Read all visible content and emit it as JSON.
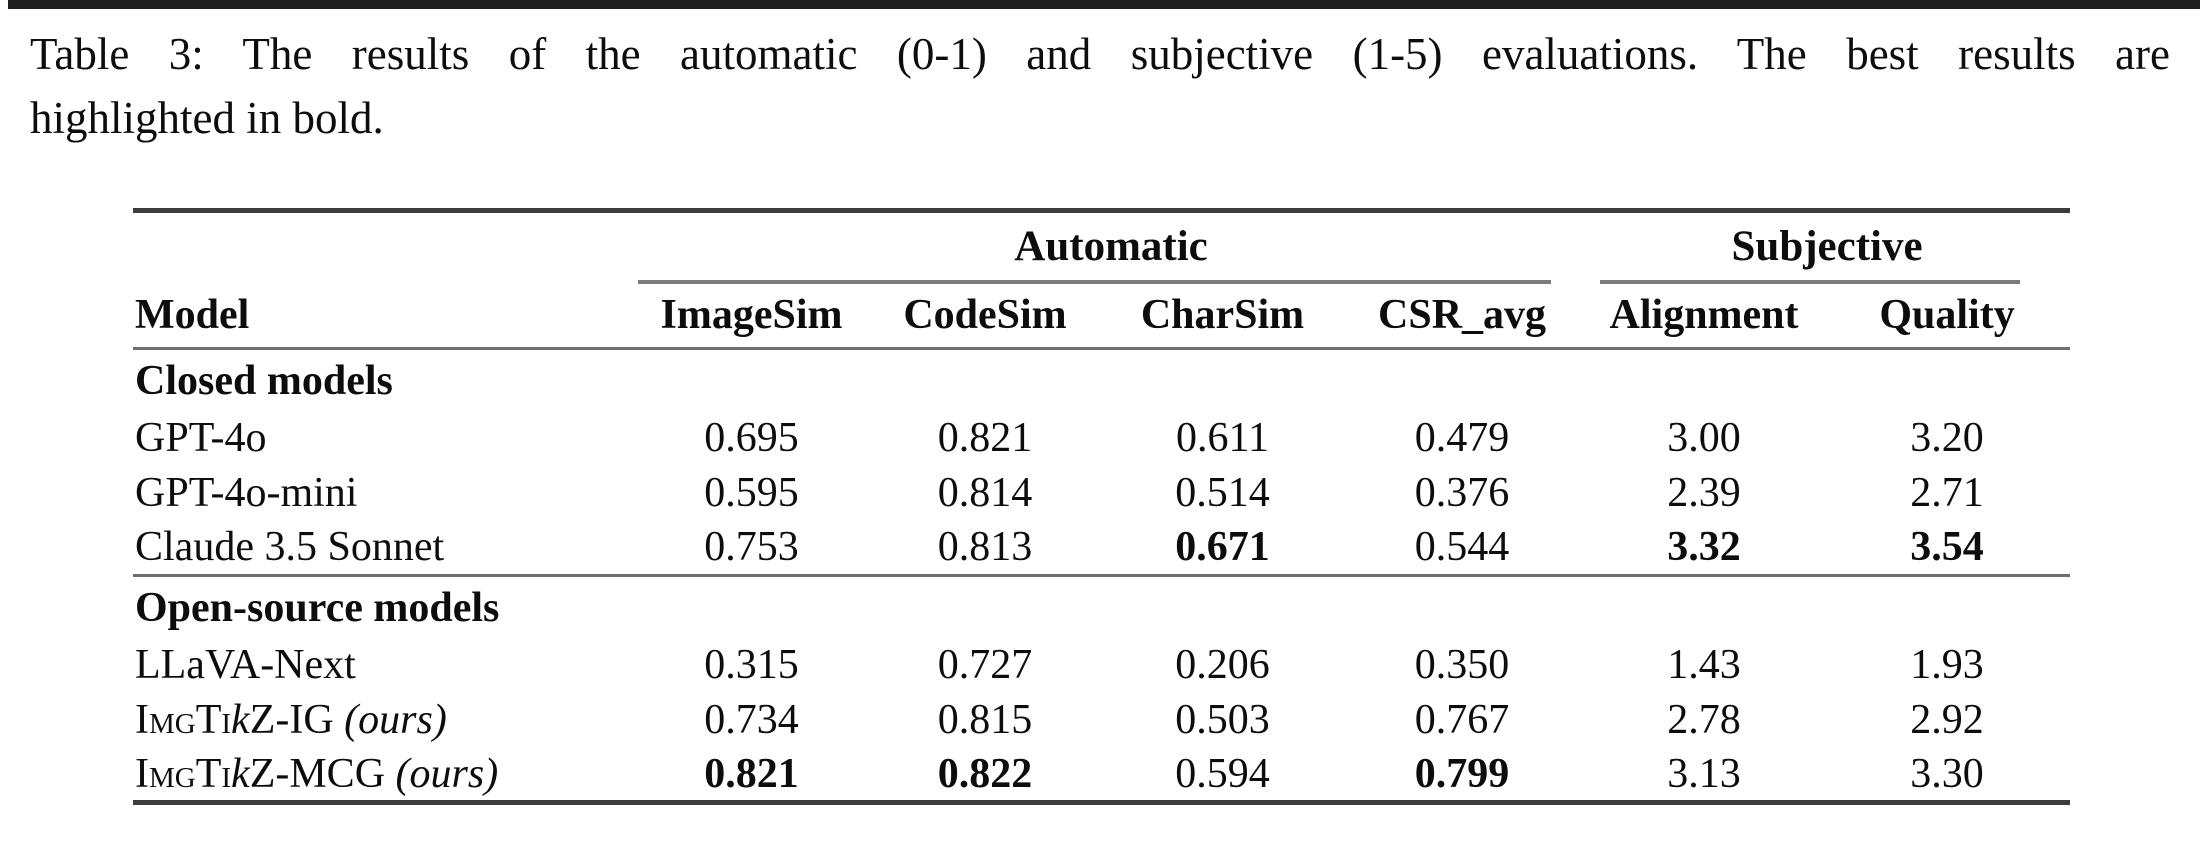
{
  "caption": {
    "line1": "Table 3: The results of the automatic (0-1) and subjective (1-5) evaluations. The best results are",
    "line2": "highlighted in bold."
  },
  "table": {
    "column_groups": [
      {
        "label": "Automatic",
        "span": 4
      },
      {
        "label": "Subjective",
        "span": 2
      }
    ],
    "columns": [
      "Model",
      "ImageSim",
      "CodeSim",
      "CharSim",
      "CSR_avg",
      "Alignment",
      "Quality"
    ],
    "sections": [
      {
        "header": "Closed models",
        "rows": [
          {
            "model": [
              {
                "t": "GPT-4o"
              }
            ],
            "values": [
              {
                "v": "0.695"
              },
              {
                "v": "0.821"
              },
              {
                "v": "0.611"
              },
              {
                "v": "0.479"
              },
              {
                "v": "3.00"
              },
              {
                "v": "3.20"
              }
            ]
          },
          {
            "model": [
              {
                "t": "GPT-4o-mini"
              }
            ],
            "values": [
              {
                "v": "0.595"
              },
              {
                "v": "0.814"
              },
              {
                "v": "0.514"
              },
              {
                "v": "0.376"
              },
              {
                "v": "2.39"
              },
              {
                "v": "2.71"
              }
            ]
          },
          {
            "model": [
              {
                "t": "Claude 3.5 Sonnet"
              }
            ],
            "values": [
              {
                "v": "0.753"
              },
              {
                "v": "0.813"
              },
              {
                "v": "0.671",
                "bold": true
              },
              {
                "v": "0.544"
              },
              {
                "v": "3.32",
                "bold": true
              },
              {
                "v": "3.54",
                "bold": true
              }
            ]
          }
        ]
      },
      {
        "header": "Open-source models",
        "rows": [
          {
            "model": [
              {
                "t": "LLaVA-Next"
              }
            ],
            "values": [
              {
                "v": "0.315"
              },
              {
                "v": "0.727"
              },
              {
                "v": "0.206"
              },
              {
                "v": "0.350"
              },
              {
                "v": "1.43"
              },
              {
                "v": "1.93"
              }
            ]
          },
          {
            "model": [
              {
                "t": "ImgTi",
                "sc": true
              },
              {
                "t": "k",
                "it": true
              },
              {
                "t": "Z-IG"
              },
              {
                "t": "  (ours)",
                "it": true
              }
            ],
            "values": [
              {
                "v": "0.734"
              },
              {
                "v": "0.815"
              },
              {
                "v": "0.503"
              },
              {
                "v": "0.767"
              },
              {
                "v": "2.78"
              },
              {
                "v": "2.92"
              }
            ]
          },
          {
            "model": [
              {
                "t": "ImgTi",
                "sc": true
              },
              {
                "t": "k",
                "it": true
              },
              {
                "t": "Z-MCG"
              },
              {
                "t": " (ours)",
                "it": true
              }
            ],
            "values": [
              {
                "v": "0.821",
                "bold": true
              },
              {
                "v": "0.822",
                "bold": true
              },
              {
                "v": "0.594"
              },
              {
                "v": "0.799",
                "bold": true
              },
              {
                "v": "3.13"
              },
              {
                "v": "3.30"
              }
            ]
          }
        ]
      }
    ]
  }
}
